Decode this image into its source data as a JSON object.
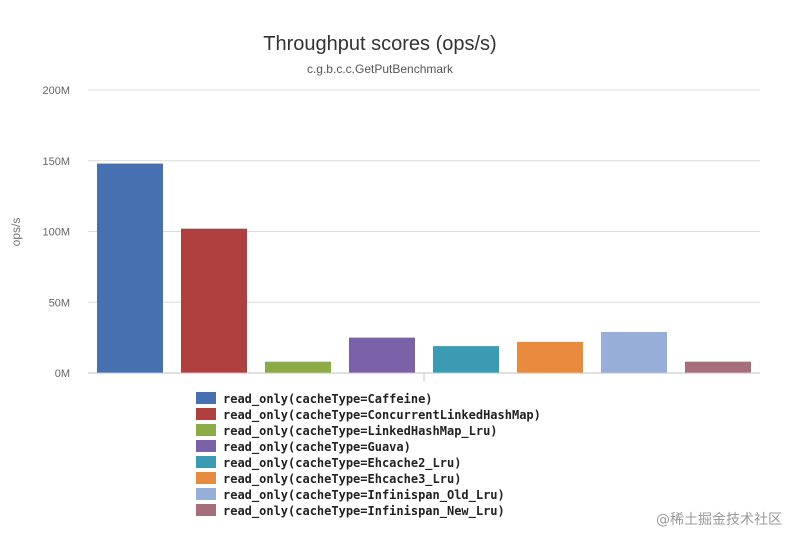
{
  "chart_data": {
    "type": "bar",
    "title": "Throughput scores (ops/s)",
    "subtitle": "c.g.b.c.c.GetPutBenchmark",
    "xlabel": "",
    "ylabel": "ops/s",
    "ylim": [
      0,
      200000000
    ],
    "y_ticks": [
      {
        "value": 0,
        "label": "0M"
      },
      {
        "value": 50000000,
        "label": "50M"
      },
      {
        "value": 100000000,
        "label": "100M"
      },
      {
        "value": 150000000,
        "label": "150M"
      },
      {
        "value": 200000000,
        "label": "200M"
      }
    ],
    "grid": true,
    "legend_position": "bottom",
    "series": [
      {
        "name": "read_only(cacheType=Caffeine)",
        "value": 148000000,
        "color": "#4670b0"
      },
      {
        "name": "read_only(cacheType=ConcurrentLinkedHashMap)",
        "value": 102000000,
        "color": "#b0403f"
      },
      {
        "name": "read_only(cacheType=LinkedHashMap_Lru)",
        "value": 8000000,
        "color": "#8aab45"
      },
      {
        "name": "read_only(cacheType=Guava)",
        "value": 25000000,
        "color": "#7b62a8"
      },
      {
        "name": "read_only(cacheType=Ehcache2_Lru)",
        "value": 19000000,
        "color": "#3a9bb2"
      },
      {
        "name": "read_only(cacheType=Ehcache3_Lru)",
        "value": 22000000,
        "color": "#e88b3f"
      },
      {
        "name": "read_only(cacheType=Infinispan_Old_Lru)",
        "value": 29000000,
        "color": "#97afd8"
      },
      {
        "name": "read_only(cacheType=Infinispan_New_Lru)",
        "value": 8000000,
        "color": "#a56e7b"
      }
    ]
  },
  "watermark": "@稀土掘金技术社区"
}
